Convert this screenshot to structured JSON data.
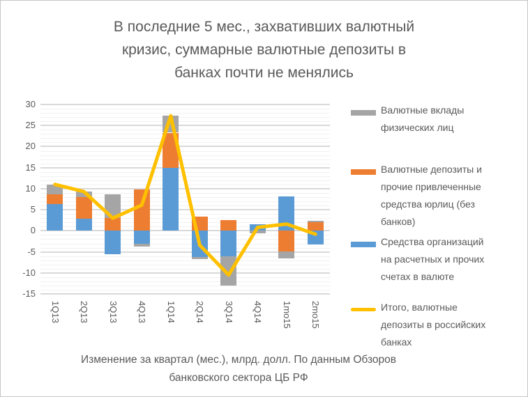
{
  "title": {
    "lines": [
      "В последние 5 мес., захвативших валютный",
      "кризис, суммарные валютные депозиты в",
      "банках почти не менялись"
    ]
  },
  "caption": {
    "lines": [
      "Изменение за квартал (мес.), млрд. долл. По данным Обзоров",
      "банковского сектора ЦБ РФ"
    ]
  },
  "colors": {
    "blue": "#5B9BD5",
    "orange": "#ED7D31",
    "gray": "#A5A5A5",
    "yellow": "#FFC000",
    "text": "#595959",
    "gridline_major": "#D9D9D9",
    "gridline_minor": "#F1F1F1",
    "page_border": "#C6C6C6"
  },
  "y_axis": {
    "min": -15,
    "max": 30,
    "major_step": 5,
    "minor_step": 1,
    "ticks": [
      "30",
      "25",
      "20",
      "15",
      "10",
      "5",
      "0",
      "-5",
      "-10",
      "-15"
    ]
  },
  "legend": {
    "items": [
      {
        "swatch": "gray-rect",
        "color": "#A5A5A5",
        "label": [
          "Валютные вклады",
          "физических лиц"
        ]
      },
      {
        "swatch": "orange-rect",
        "color": "#ED7D31",
        "label": [
          "Валютные депозиты и",
          "прочие привлеченные",
          "средства юрлиц (без",
          "банков)"
        ]
      },
      {
        "swatch": "blue-rect",
        "color": "#5B9BD5",
        "label": [
          "Средства организаций",
          "на расчетных и прочих",
          "счетах в валюте"
        ]
      },
      {
        "swatch": "yellow-line",
        "color": "#FFC000",
        "label": [
          "Итого, валютные",
          "депозиты в российских",
          "банках"
        ]
      }
    ]
  },
  "chart_data": {
    "type": "bar",
    "subtype": "stacked-columns-with-total-line",
    "title": "В последние 5 мес., захвативших валютный кризис, суммарные валютные депозиты в банках почти не менялись",
    "note": "Изменение за квартал (мес.), млрд. долл. По данным Обзоров банковского сектора ЦБ РФ",
    "categories": [
      "1Q13",
      "2Q13",
      "3Q13",
      "4Q13",
      "1Q14",
      "2Q14",
      "3Q14",
      "4Q14",
      "1mo15",
      "2mo15"
    ],
    "series": [
      {
        "name": "Средства организаций на расчетных и прочих счетах в валюте",
        "color": "#5B9BD5",
        "values": [
          6.3,
          2.9,
          -5.6,
          -3.1,
          15.0,
          -6.3,
          -6.1,
          1.5,
          8.1,
          -3.2
        ]
      },
      {
        "name": "Валютные депозиты и прочие привлеченные средства юрлиц (без банков)",
        "color": "#ED7D31",
        "values": [
          2.3,
          5.1,
          3.0,
          9.8,
          8.3,
          3.4,
          2.6,
          0.0,
          -4.9,
          2.1
        ]
      },
      {
        "name": "Валютные вклады физических лиц",
        "color": "#A5A5A5",
        "values": [
          2.4,
          1.3,
          5.6,
          -0.6,
          4.0,
          -0.5,
          -7.0,
          -0.7,
          -1.6,
          0.3
        ]
      }
    ],
    "line_series": {
      "name": "Итого, валютные депозиты в российских банках",
      "color": "#FFC000",
      "values": [
        11.0,
        9.3,
        3.0,
        6.1,
        27.3,
        -3.4,
        -10.5,
        0.8,
        1.6,
        -0.8
      ]
    },
    "ylim": [
      -15,
      30
    ],
    "grid": "major+minor",
    "legend_position": "right"
  }
}
